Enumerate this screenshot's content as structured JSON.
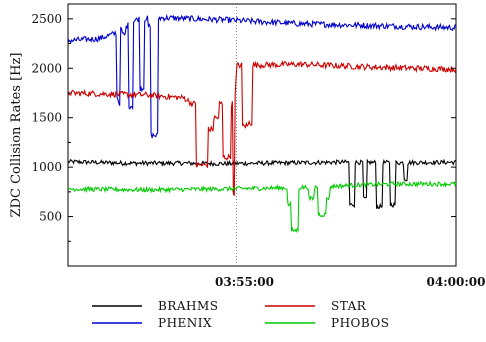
{
  "chart_data": {
    "type": "line",
    "ylabel": "ZDC Collision Rates [Hz]",
    "xlabel": "",
    "ylim": [
      0,
      2650
    ],
    "y_ticks": [
      500,
      1000,
      1500,
      2000,
      2500
    ],
    "x_ticks": [
      {
        "x": 0.455,
        "label": "03:55:00"
      },
      {
        "x": 1.0,
        "label": "04:00:00"
      }
    ],
    "legend_placement": "bottom",
    "series": [
      {
        "name": "BRAHMS",
        "color": "#000000",
        "base": [
          [
            0,
            1055
          ],
          [
            0.15,
            1040
          ],
          [
            0.3,
            1040
          ],
          [
            0.4,
            1035
          ],
          [
            0.5,
            1040
          ],
          [
            0.7,
            1050
          ],
          [
            0.85,
            1045
          ],
          [
            1,
            1050
          ]
        ],
        "events": [
          [
            0.725,
            0.74,
            620
          ],
          [
            0.76,
            0.77,
            680
          ],
          [
            0.795,
            0.81,
            600
          ],
          [
            0.83,
            0.845,
            620
          ],
          [
            0.865,
            0.875,
            880
          ]
        ],
        "noise": 22
      },
      {
        "name": "PHENIX",
        "color": "#0000cc",
        "base": [
          [
            0,
            2280
          ],
          [
            0.08,
            2300
          ],
          [
            0.12,
            2350
          ],
          [
            0.18,
            2500
          ],
          [
            0.25,
            2510
          ],
          [
            0.4,
            2490
          ],
          [
            0.6,
            2450
          ],
          [
            0.8,
            2430
          ],
          [
            1,
            2410
          ]
        ],
        "events": [
          [
            0.125,
            0.13,
            1700
          ],
          [
            0.13,
            0.135,
            1650
          ],
          [
            0.14,
            0.148,
            2340
          ],
          [
            0.155,
            0.168,
            1620
          ],
          [
            0.185,
            0.197,
            1800
          ],
          [
            0.205,
            0.212,
            2420
          ],
          [
            0.212,
            0.232,
            1320
          ]
        ],
        "noise": 30
      },
      {
        "name": "STAR",
        "color": "#cc0000",
        "base": [
          [
            0,
            1750
          ],
          [
            0.2,
            1730
          ],
          [
            0.3,
            1700
          ],
          [
            0.32,
            1640
          ],
          [
            0.37,
            1640
          ],
          [
            0.43,
            1640
          ],
          [
            0.435,
            2030
          ],
          [
            0.6,
            2040
          ],
          [
            0.8,
            2010
          ],
          [
            1,
            1990
          ]
        ],
        "events": [
          [
            0.33,
            0.36,
            1020
          ],
          [
            0.36,
            0.375,
            1380
          ],
          [
            0.375,
            0.39,
            1500
          ],
          [
            0.4,
            0.42,
            1100
          ],
          [
            0.425,
            0.43,
            740
          ],
          [
            0.45,
            0.465,
            1420
          ],
          [
            0.465,
            0.475,
            1450
          ]
        ],
        "noise": 30
      },
      {
        "name": "PHOBOS",
        "color": "#00cc00",
        "base": [
          [
            0,
            780
          ],
          [
            0.2,
            770
          ],
          [
            0.4,
            780
          ],
          [
            0.55,
            790
          ],
          [
            0.65,
            800
          ],
          [
            0.75,
            820
          ],
          [
            0.85,
            830
          ],
          [
            1,
            830
          ]
        ],
        "events": [
          [
            0.565,
            0.575,
            620
          ],
          [
            0.575,
            0.595,
            360
          ],
          [
            0.62,
            0.635,
            680
          ],
          [
            0.645,
            0.665,
            520
          ],
          [
            0.665,
            0.675,
            690
          ]
        ],
        "noise": 22
      }
    ]
  },
  "legend": [
    {
      "label": "BRAHMS",
      "color": "#000000"
    },
    {
      "label": "STAR",
      "color": "#cc0000"
    },
    {
      "label": "PHENIX",
      "color": "#0000cc"
    },
    {
      "label": "PHOBOS",
      "color": "#00cc00"
    }
  ]
}
